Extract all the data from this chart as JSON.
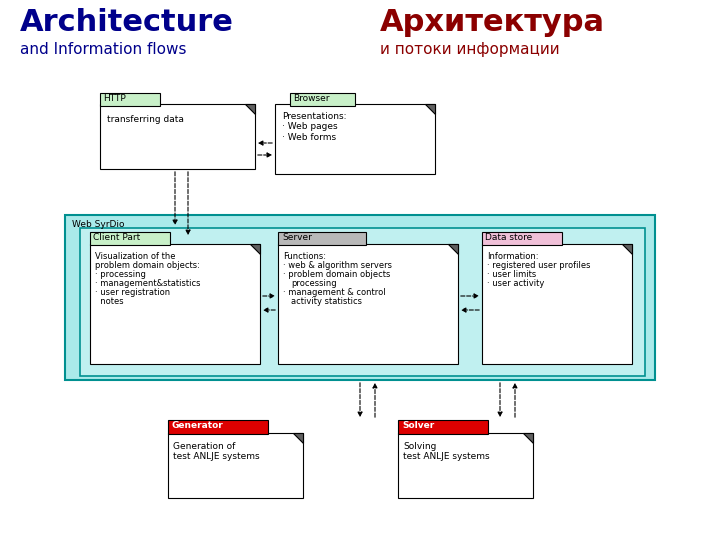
{
  "title_left": "Architecture",
  "subtitle_left": "and Information flows",
  "title_right": "Архитектура",
  "subtitle_right": "и потоки информации",
  "title_left_color": "#00008B",
  "subtitle_left_color": "#00008B",
  "title_right_color": "#8B0000",
  "subtitle_right_color": "#8B0000",
  "bg_color": "#FFFFFF",
  "light_cyan": "#AAEAEA",
  "light_cyan2": "#C0F0F0",
  "light_green": "#C8F0C8",
  "light_pink": "#F0C0D8",
  "light_gray": "#B8B8B8",
  "dark_gray": "#606060",
  "red_header": "#DD0000",
  "white": "#FFFFFF",
  "black": "#000000",
  "teal_border": "#009090"
}
